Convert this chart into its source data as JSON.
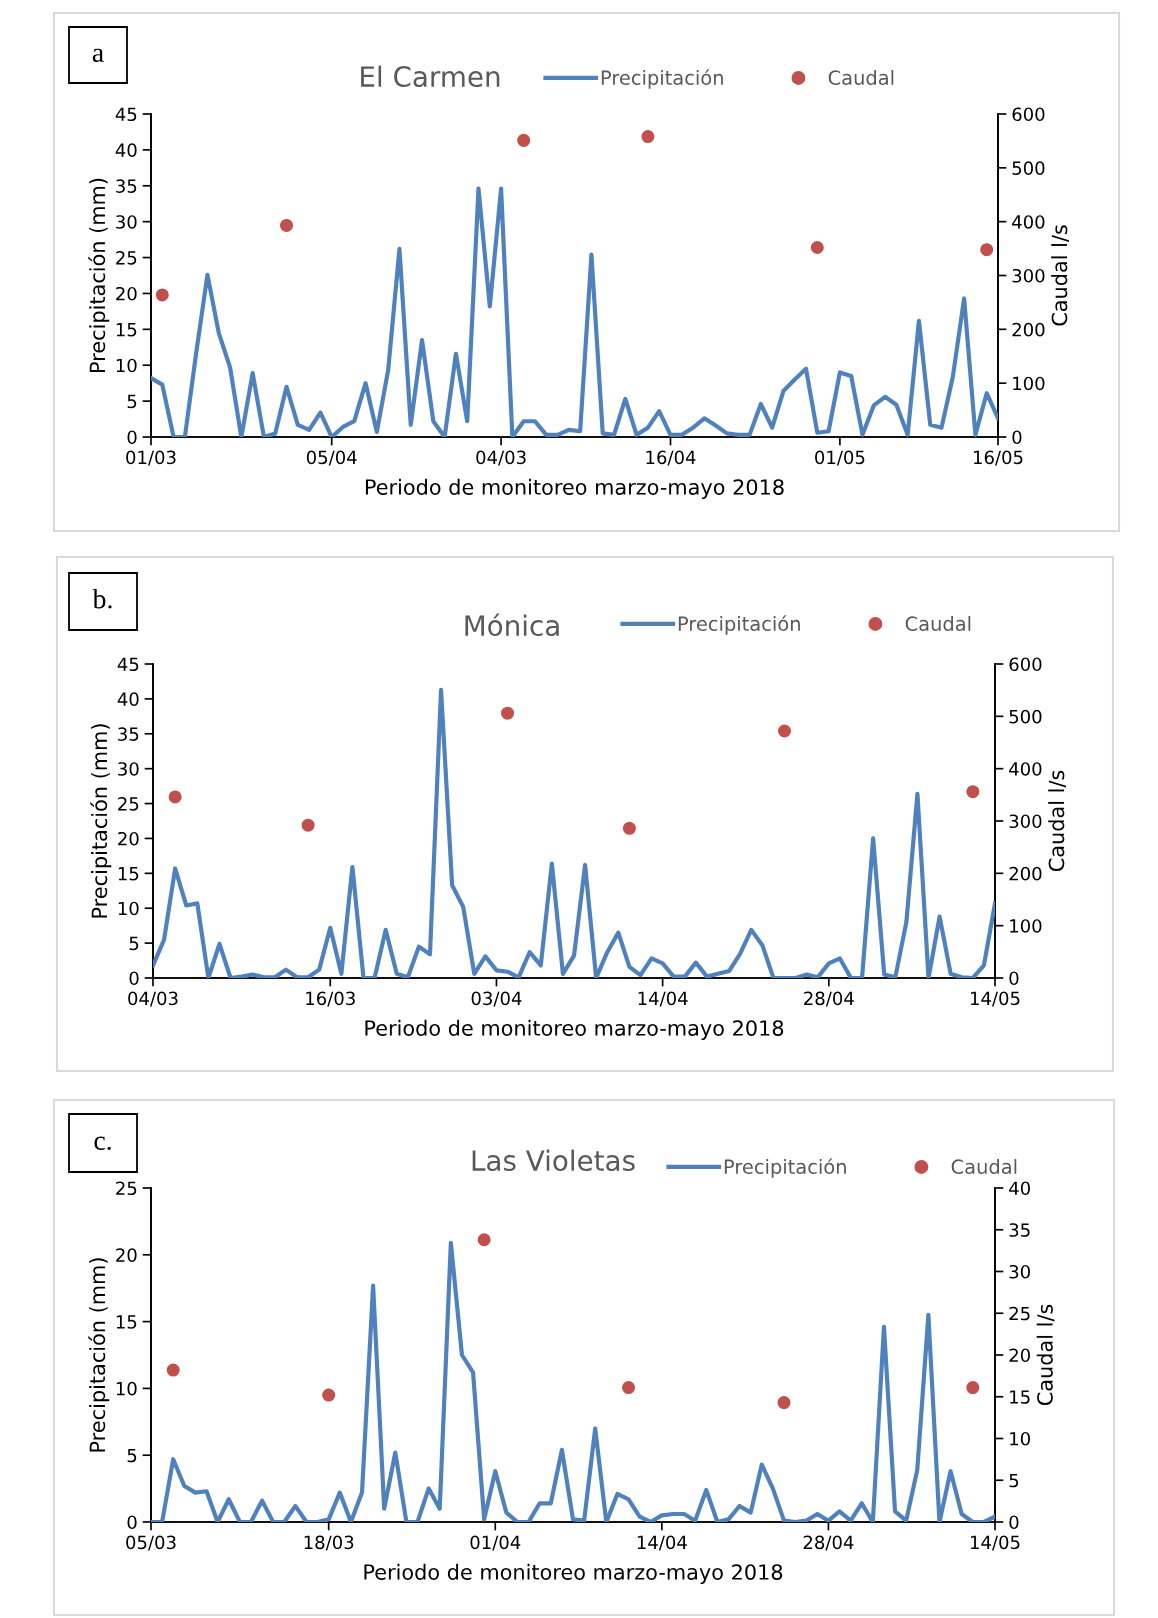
{
  "chart_data": [
    {
      "type": "line",
      "title": "El Carmen",
      "xlabel": "Periodo de monitoreo marzo-mayo 2018",
      "ylabel": "Precipitación (mm)",
      "y2label": "Caudal l/s",
      "annotations": [
        "a"
      ],
      "categories": [
        "01/03",
        null,
        null,
        null,
        null,
        null,
        null,
        null,
        null,
        null,
        null,
        null,
        null,
        null,
        null,
        null,
        "05/04",
        null,
        null,
        null,
        null,
        null,
        null,
        null,
        null,
        null,
        null,
        null,
        null,
        null,
        null,
        "04/03",
        null,
        null,
        null,
        null,
        null,
        null,
        null,
        null,
        null,
        null,
        null,
        null,
        null,
        null,
        "16/04",
        null,
        null,
        null,
        null,
        null,
        null,
        null,
        null,
        null,
        null,
        null,
        null,
        null,
        null,
        "01/05",
        null,
        null,
        null,
        null,
        null,
        null,
        null,
        null,
        null,
        null,
        null,
        null,
        null,
        "16/05"
      ],
      "ylim": [
        0,
        45
      ],
      "yticks": [
        0,
        5,
        10,
        15,
        20,
        25,
        30,
        35,
        40,
        45
      ],
      "y2lim": [
        0,
        600
      ],
      "y2ticks": [
        0,
        100,
        200,
        300,
        400,
        500,
        600
      ],
      "legend": "top",
      "series": [
        {
          "name": "Precipitación",
          "color": "#4f81bd",
          "marker": "none",
          "line_style": "solid",
          "values": [
            8.2,
            7.3,
            0,
            0,
            11.7,
            22.6,
            14.5,
            9.7,
            0,
            8.9,
            0,
            0.5,
            7.0,
            1.7,
            1.0,
            3.4,
            0,
            1.4,
            2.2,
            7.5,
            0.7,
            9.3,
            26.2,
            1.7,
            13.5,
            2.2,
            0,
            11.6,
            2.2,
            34.6,
            18.2,
            34.6,
            0,
            2.2,
            2.2,
            0.3,
            0.3,
            1.0,
            0.8,
            25.4,
            0.5,
            0.3,
            5.3,
            0.3,
            1.3,
            3.6,
            0.3,
            0.3,
            1.3,
            2.6,
            1.6,
            0.5,
            0.3,
            0.3,
            4.6,
            1.3,
            6.4,
            8.0,
            9.5,
            0.6,
            0.8,
            9.0,
            8.5,
            0.3,
            4.4,
            5.6,
            4.5,
            0.3,
            16.2,
            1.7,
            1.3,
            8.4,
            19.3,
            0.3,
            6.1,
            2.6
          ]
        },
        {
          "name": "Caudal",
          "color": "#c0504d",
          "type": "scatter",
          "marker": "circle",
          "axis": "y2",
          "values": [
            null,
            264,
            null,
            null,
            null,
            null,
            null,
            null,
            null,
            null,
            null,
            null,
            393,
            null,
            null,
            null,
            null,
            null,
            null,
            null,
            null,
            null,
            null,
            null,
            null,
            null,
            null,
            null,
            null,
            null,
            null,
            null,
            null,
            551,
            null,
            null,
            null,
            null,
            null,
            null,
            null,
            null,
            null,
            null,
            558,
            null,
            null,
            null,
            null,
            null,
            null,
            null,
            null,
            null,
            null,
            null,
            null,
            null,
            null,
            352,
            null,
            null,
            null,
            null,
            null,
            null,
            null,
            null,
            null,
            null,
            null,
            null,
            null,
            null,
            348,
            null
          ]
        }
      ]
    },
    {
      "type": "line",
      "title": "Mónica",
      "xlabel": "Periodo de monitoreo marzo-mayo 2018",
      "ylabel": "Precipitación (mm)",
      "y2label": "Caudal l/s",
      "annotations": [
        "b."
      ],
      "categories": [
        "04/03",
        null,
        null,
        null,
        null,
        null,
        null,
        null,
        null,
        null,
        null,
        null,
        null,
        null,
        null,
        null,
        "16/03",
        null,
        null,
        null,
        null,
        null,
        null,
        null,
        null,
        null,
        null,
        null,
        null,
        null,
        null,
        "03/04",
        null,
        null,
        null,
        null,
        null,
        null,
        null,
        null,
        null,
        null,
        null,
        null,
        null,
        null,
        "14/04",
        null,
        null,
        null,
        null,
        null,
        null,
        null,
        null,
        null,
        null,
        null,
        null,
        null,
        null,
        "28/04",
        null,
        null,
        null,
        null,
        null,
        null,
        null,
        null,
        null,
        null,
        null,
        null,
        null,
        null,
        "14/05"
      ],
      "ylim": [
        0,
        45
      ],
      "yticks": [
        0,
        5,
        10,
        15,
        20,
        25,
        30,
        35,
        40,
        45
      ],
      "y2lim": [
        0,
        600
      ],
      "y2ticks": [
        0,
        100,
        200,
        300,
        400,
        500,
        600
      ],
      "legend": "top",
      "series": [
        {
          "name": "Precipitación",
          "color": "#4f81bd",
          "marker": "none",
          "line_style": "solid",
          "values": [
            1.8,
            5.5,
            15.7,
            10.4,
            10.7,
            0,
            4.9,
            0,
            0.2,
            0.5,
            0.1,
            0.1,
            1.2,
            0.1,
            0.1,
            1.2,
            7.2,
            0.6,
            15.9,
            0,
            0,
            6.9,
            0.6,
            0.1,
            4.5,
            3.4,
            41.3,
            13.3,
            10.2,
            0.6,
            3.1,
            1.1,
            0.9,
            0.1,
            3.7,
            1.8,
            16.4,
            0.6,
            3.2,
            16.2,
            0,
            3.7,
            6.5,
            1.6,
            0.4,
            2.8,
            2.1,
            0.2,
            0.2,
            2.2,
            0.2,
            0.6,
            1.0,
            3.5,
            6.9,
            4.7,
            0,
            0,
            0,
            0.5,
            0.1,
            2.1,
            2.8,
            0,
            0,
            20.0,
            0.5,
            0.1,
            8.0,
            26.4,
            0,
            8.8,
            0.6,
            0.1,
            0,
            1.8,
            10.7
          ]
        },
        {
          "name": "Caudal",
          "color": "#c0504d",
          "type": "scatter",
          "marker": "circle",
          "axis": "y2",
          "values": [
            null,
            null,
            346,
            null,
            null,
            null,
            null,
            null,
            null,
            null,
            null,
            null,
            null,
            null,
            292,
            null,
            null,
            null,
            null,
            null,
            null,
            null,
            null,
            null,
            null,
            null,
            null,
            null,
            null,
            null,
            null,
            null,
            506,
            null,
            null,
            null,
            null,
            null,
            null,
            null,
            null,
            null,
            null,
            286,
            null,
            null,
            null,
            null,
            null,
            null,
            null,
            null,
            null,
            null,
            null,
            null,
            null,
            472,
            null,
            null,
            null,
            null,
            null,
            null,
            null,
            null,
            null,
            null,
            null,
            null,
            null,
            null,
            null,
            null,
            356,
            null,
            null
          ]
        }
      ]
    },
    {
      "type": "line",
      "title": "Las Violetas",
      "xlabel": "Periodo de monitoreo marzo-mayo 2018",
      "ylabel": "Precipitación (mm)",
      "y2label": "Caudal l/s",
      "annotations": [
        "c."
      ],
      "categories": [
        "05/03",
        null,
        null,
        null,
        null,
        null,
        null,
        null,
        null,
        null,
        null,
        null,
        null,
        null,
        null,
        null,
        "18/03",
        null,
        null,
        null,
        null,
        null,
        null,
        null,
        null,
        null,
        null,
        null,
        null,
        null,
        null,
        "01/04",
        null,
        null,
        null,
        null,
        null,
        null,
        null,
        null,
        null,
        null,
        null,
        null,
        null,
        null,
        "14/04",
        null,
        null,
        null,
        null,
        null,
        null,
        null,
        null,
        null,
        null,
        null,
        null,
        null,
        null,
        "28/04",
        null,
        null,
        null,
        null,
        null,
        null,
        null,
        null,
        null,
        null,
        null,
        null,
        null,
        null,
        "14/05"
      ],
      "ylim": [
        0,
        25
      ],
      "yticks": [
        0,
        5,
        10,
        15,
        20,
        25
      ],
      "y2lim": [
        0,
        40
      ],
      "y2ticks": [
        0,
        5,
        10,
        15,
        20,
        25,
        30,
        35,
        40
      ],
      "legend": "top",
      "series": [
        {
          "name": "Precipitación",
          "color": "#4f81bd",
          "marker": "none",
          "line_style": "solid",
          "values": [
            0,
            0,
            4.7,
            2.7,
            2.2,
            2.3,
            0,
            1.7,
            0,
            0,
            1.6,
            0,
            0,
            1.2,
            0,
            0,
            0.2,
            2.2,
            0,
            2.2,
            17.7,
            1.0,
            5.2,
            0,
            0,
            2.5,
            1.0,
            20.9,
            12.5,
            11.2,
            0.2,
            3.8,
            0.7,
            0,
            0,
            1.4,
            1.4,
            5.4,
            0.2,
            0.1,
            7.0,
            0,
            2.1,
            1.7,
            0.4,
            0,
            0.5,
            0.6,
            0.6,
            0.1,
            2.4,
            0,
            0.2,
            1.2,
            0.7,
            4.3,
            2.5,
            0.1,
            0,
            0.1,
            0.6,
            0.1,
            0.8,
            0.1,
            1.4,
            0,
            14.6,
            0.8,
            0.1,
            3.9,
            15.5,
            0,
            3.8,
            0.6,
            0,
            0,
            0.4
          ]
        },
        {
          "name": "Caudal",
          "color": "#c0504d",
          "type": "scatter",
          "marker": "circle",
          "axis": "y2",
          "values": [
            null,
            null,
            18.2,
            null,
            null,
            null,
            null,
            null,
            null,
            null,
            null,
            null,
            null,
            null,
            null,
            null,
            15.2,
            null,
            null,
            null,
            null,
            null,
            null,
            null,
            null,
            null,
            null,
            null,
            null,
            null,
            33.8,
            null,
            null,
            null,
            null,
            null,
            null,
            null,
            null,
            null,
            null,
            null,
            null,
            16.1,
            null,
            null,
            null,
            null,
            null,
            null,
            null,
            null,
            null,
            null,
            null,
            null,
            null,
            14.3,
            null,
            null,
            null,
            null,
            null,
            null,
            null,
            null,
            null,
            null,
            null,
            null,
            null,
            null,
            null,
            null,
            16.1,
            null,
            null
          ]
        }
      ]
    }
  ]
}
